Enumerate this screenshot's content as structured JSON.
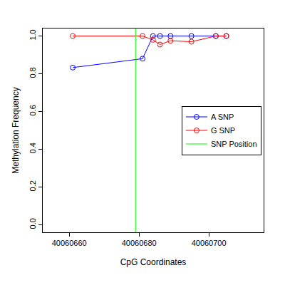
{
  "chart_data": {
    "type": "line",
    "x_label": "CpG Coordinates",
    "y_label": "Methylation Frequency",
    "x": [
      40060661,
      40060681,
      40060684,
      40060686,
      40060689,
      40060695,
      40060702,
      40060705
    ],
    "series": [
      {
        "name": "A SNP",
        "color": "#0000ff",
        "values": [
          0.833,
          0.88,
          1.0,
          1.0,
          1.0,
          1.0,
          1.0,
          1.0
        ]
      },
      {
        "name": "G SNP",
        "color": "#ff0000",
        "values": [
          1.0,
          1.0,
          0.98,
          0.955,
          0.975,
          0.97,
          1.0,
          1.0
        ]
      }
    ],
    "vlines": [
      {
        "name": "SNP Position",
        "x": 40060679,
        "color": "#00ff00"
      }
    ],
    "xlim": [
      40060652.4,
      40060715.7
    ],
    "xticks": [
      40060660,
      40060680,
      40060700
    ],
    "ylim": [
      -0.04,
      1.04
    ],
    "yticks": [
      {
        "value": 0,
        "label": "0.0"
      },
      {
        "value": 0.2,
        "label": "0.2"
      },
      {
        "value": 0.4,
        "label": "0.4"
      },
      {
        "value": 0.6,
        "label": "0.6"
      },
      {
        "value": 0.8,
        "label": "0.8"
      },
      {
        "value": 1,
        "label": "1.0"
      }
    ],
    "grid": false,
    "legend": "right",
    "marker": "circle-open",
    "line_style": "solid"
  }
}
